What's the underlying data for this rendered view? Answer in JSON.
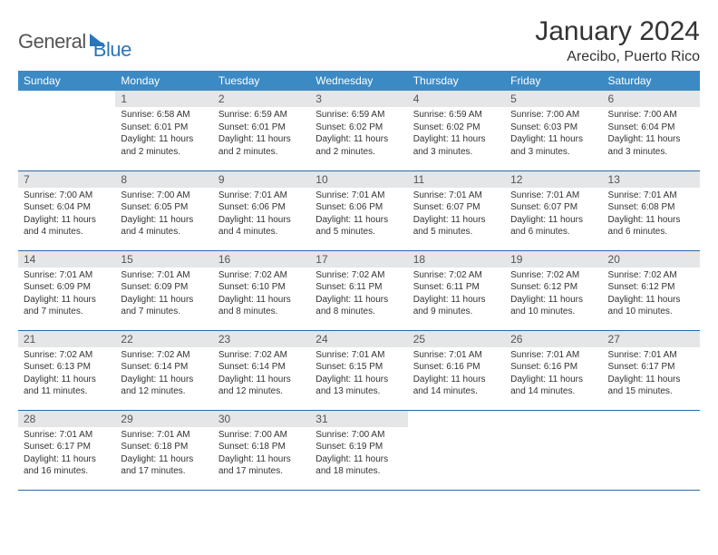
{
  "logo": {
    "text1": "General",
    "text2": "Blue"
  },
  "title": "January 2024",
  "location": "Arecibo, Puerto Rico",
  "colors": {
    "header_bg": "#3b8ac4",
    "header_text": "#ffffff",
    "daynum_bg": "#e4e6e8",
    "border": "#2a6aa8",
    "logo_blue": "#2a76b8"
  },
  "typography": {
    "title_fontsize": 30,
    "location_fontsize": 16,
    "header_fontsize": 12,
    "daynum_fontsize": 12,
    "body_fontsize": 10
  },
  "weekdays": [
    "Sunday",
    "Monday",
    "Tuesday",
    "Wednesday",
    "Thursday",
    "Friday",
    "Saturday"
  ],
  "weeks": [
    [
      null,
      {
        "n": "1",
        "sr": "6:58 AM",
        "ss": "6:01 PM",
        "dl": "11 hours and 2 minutes."
      },
      {
        "n": "2",
        "sr": "6:59 AM",
        "ss": "6:01 PM",
        "dl": "11 hours and 2 minutes."
      },
      {
        "n": "3",
        "sr": "6:59 AM",
        "ss": "6:02 PM",
        "dl": "11 hours and 2 minutes."
      },
      {
        "n": "4",
        "sr": "6:59 AM",
        "ss": "6:02 PM",
        "dl": "11 hours and 3 minutes."
      },
      {
        "n": "5",
        "sr": "7:00 AM",
        "ss": "6:03 PM",
        "dl": "11 hours and 3 minutes."
      },
      {
        "n": "6",
        "sr": "7:00 AM",
        "ss": "6:04 PM",
        "dl": "11 hours and 3 minutes."
      }
    ],
    [
      {
        "n": "7",
        "sr": "7:00 AM",
        "ss": "6:04 PM",
        "dl": "11 hours and 4 minutes."
      },
      {
        "n": "8",
        "sr": "7:00 AM",
        "ss": "6:05 PM",
        "dl": "11 hours and 4 minutes."
      },
      {
        "n": "9",
        "sr": "7:01 AM",
        "ss": "6:06 PM",
        "dl": "11 hours and 4 minutes."
      },
      {
        "n": "10",
        "sr": "7:01 AM",
        "ss": "6:06 PM",
        "dl": "11 hours and 5 minutes."
      },
      {
        "n": "11",
        "sr": "7:01 AM",
        "ss": "6:07 PM",
        "dl": "11 hours and 5 minutes."
      },
      {
        "n": "12",
        "sr": "7:01 AM",
        "ss": "6:07 PM",
        "dl": "11 hours and 6 minutes."
      },
      {
        "n": "13",
        "sr": "7:01 AM",
        "ss": "6:08 PM",
        "dl": "11 hours and 6 minutes."
      }
    ],
    [
      {
        "n": "14",
        "sr": "7:01 AM",
        "ss": "6:09 PM",
        "dl": "11 hours and 7 minutes."
      },
      {
        "n": "15",
        "sr": "7:01 AM",
        "ss": "6:09 PM",
        "dl": "11 hours and 7 minutes."
      },
      {
        "n": "16",
        "sr": "7:02 AM",
        "ss": "6:10 PM",
        "dl": "11 hours and 8 minutes."
      },
      {
        "n": "17",
        "sr": "7:02 AM",
        "ss": "6:11 PM",
        "dl": "11 hours and 8 minutes."
      },
      {
        "n": "18",
        "sr": "7:02 AM",
        "ss": "6:11 PM",
        "dl": "11 hours and 9 minutes."
      },
      {
        "n": "19",
        "sr": "7:02 AM",
        "ss": "6:12 PM",
        "dl": "11 hours and 10 minutes."
      },
      {
        "n": "20",
        "sr": "7:02 AM",
        "ss": "6:12 PM",
        "dl": "11 hours and 10 minutes."
      }
    ],
    [
      {
        "n": "21",
        "sr": "7:02 AM",
        "ss": "6:13 PM",
        "dl": "11 hours and 11 minutes."
      },
      {
        "n": "22",
        "sr": "7:02 AM",
        "ss": "6:14 PM",
        "dl": "11 hours and 12 minutes."
      },
      {
        "n": "23",
        "sr": "7:02 AM",
        "ss": "6:14 PM",
        "dl": "11 hours and 12 minutes."
      },
      {
        "n": "24",
        "sr": "7:01 AM",
        "ss": "6:15 PM",
        "dl": "11 hours and 13 minutes."
      },
      {
        "n": "25",
        "sr": "7:01 AM",
        "ss": "6:16 PM",
        "dl": "11 hours and 14 minutes."
      },
      {
        "n": "26",
        "sr": "7:01 AM",
        "ss": "6:16 PM",
        "dl": "11 hours and 14 minutes."
      },
      {
        "n": "27",
        "sr": "7:01 AM",
        "ss": "6:17 PM",
        "dl": "11 hours and 15 minutes."
      }
    ],
    [
      {
        "n": "28",
        "sr": "7:01 AM",
        "ss": "6:17 PM",
        "dl": "11 hours and 16 minutes."
      },
      {
        "n": "29",
        "sr": "7:01 AM",
        "ss": "6:18 PM",
        "dl": "11 hours and 17 minutes."
      },
      {
        "n": "30",
        "sr": "7:00 AM",
        "ss": "6:18 PM",
        "dl": "11 hours and 17 minutes."
      },
      {
        "n": "31",
        "sr": "7:00 AM",
        "ss": "6:19 PM",
        "dl": "11 hours and 18 minutes."
      },
      null,
      null,
      null
    ]
  ],
  "labels": {
    "sunrise": "Sunrise:",
    "sunset": "Sunset:",
    "daylight": "Daylight:"
  }
}
